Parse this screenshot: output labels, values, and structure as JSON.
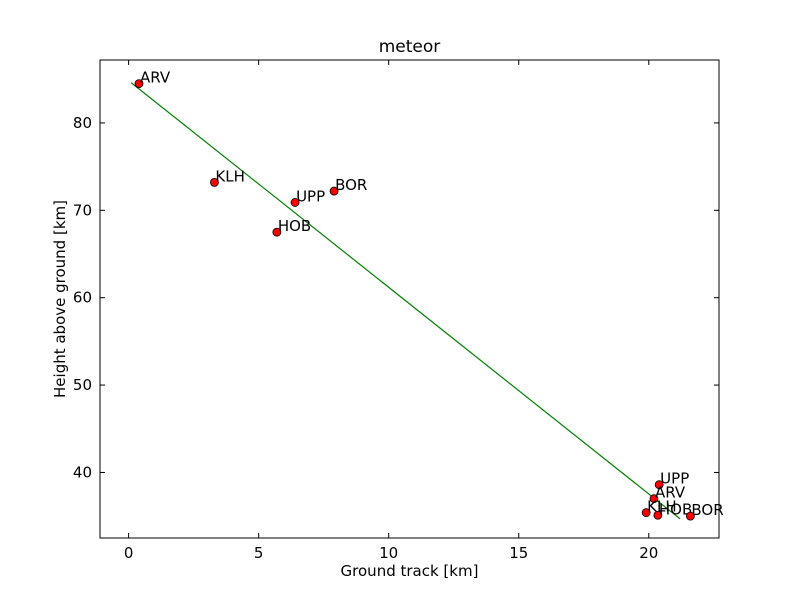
{
  "chart_data": {
    "type": "scatter",
    "title": "meteor",
    "xlabel": "Ground track [km]",
    "ylabel": "Height above ground [km]",
    "xlim": [
      -1.1,
      22.7
    ],
    "ylim": [
      32.5,
      87.2
    ],
    "xticks": [
      0,
      5,
      10,
      15,
      20
    ],
    "yticks": [
      40,
      50,
      60,
      70,
      80
    ],
    "grid": false,
    "colors": {
      "points": "#ff0000",
      "line": "#008000",
      "axes": "#000000"
    },
    "series": [
      {
        "type": "scatter",
        "points": [
          {
            "label": "ARV",
            "x": 0.4,
            "y": 84.5
          },
          {
            "label": "KLH",
            "x": 3.3,
            "y": 73.2
          },
          {
            "label": "UPP",
            "x": 6.4,
            "y": 70.9
          },
          {
            "label": "BOR",
            "x": 7.9,
            "y": 72.2
          },
          {
            "label": "HOB",
            "x": 5.7,
            "y": 67.5
          },
          {
            "label": "UPP",
            "x": 20.4,
            "y": 38.6
          },
          {
            "label": "ARV",
            "x": 20.2,
            "y": 37.0
          },
          {
            "label": "KLH",
            "x": 19.9,
            "y": 35.4
          },
          {
            "label": "HOB",
            "x": 20.35,
            "y": 35.1
          },
          {
            "label": "BOR",
            "x": 21.6,
            "y": 35.0
          }
        ]
      },
      {
        "type": "line",
        "x": [
          0.1,
          21.2
        ],
        "y": [
          84.6,
          34.7
        ]
      }
    ]
  }
}
